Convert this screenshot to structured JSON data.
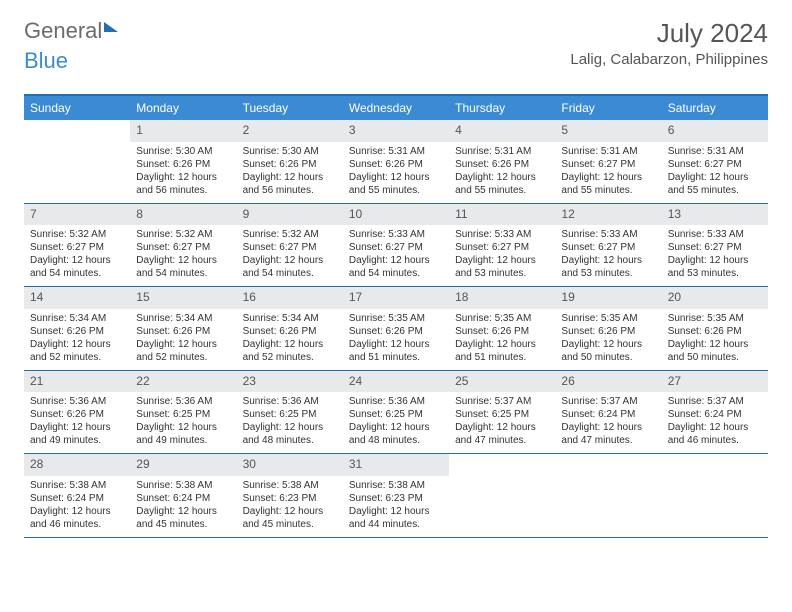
{
  "logo": {
    "part1": "General",
    "part2": "Blue"
  },
  "title": "July 2024",
  "location": "Lalig, Calabarzon, Philippines",
  "day_names": [
    "Sunday",
    "Monday",
    "Tuesday",
    "Wednesday",
    "Thursday",
    "Friday",
    "Saturday"
  ],
  "colors": {
    "accent": "#3b8bd4",
    "border": "#1f6fb5",
    "day_header_bg": "#e7e9ea",
    "text": "#333333",
    "muted": "#555555"
  },
  "weeks": [
    [
      {
        "day": "",
        "sunrise": "",
        "sunset": "",
        "daylight": ""
      },
      {
        "day": "1",
        "sunrise": "Sunrise: 5:30 AM",
        "sunset": "Sunset: 6:26 PM",
        "daylight": "Daylight: 12 hours and 56 minutes."
      },
      {
        "day": "2",
        "sunrise": "Sunrise: 5:30 AM",
        "sunset": "Sunset: 6:26 PM",
        "daylight": "Daylight: 12 hours and 56 minutes."
      },
      {
        "day": "3",
        "sunrise": "Sunrise: 5:31 AM",
        "sunset": "Sunset: 6:26 PM",
        "daylight": "Daylight: 12 hours and 55 minutes."
      },
      {
        "day": "4",
        "sunrise": "Sunrise: 5:31 AM",
        "sunset": "Sunset: 6:26 PM",
        "daylight": "Daylight: 12 hours and 55 minutes."
      },
      {
        "day": "5",
        "sunrise": "Sunrise: 5:31 AM",
        "sunset": "Sunset: 6:27 PM",
        "daylight": "Daylight: 12 hours and 55 minutes."
      },
      {
        "day": "6",
        "sunrise": "Sunrise: 5:31 AM",
        "sunset": "Sunset: 6:27 PM",
        "daylight": "Daylight: 12 hours and 55 minutes."
      }
    ],
    [
      {
        "day": "7",
        "sunrise": "Sunrise: 5:32 AM",
        "sunset": "Sunset: 6:27 PM",
        "daylight": "Daylight: 12 hours and 54 minutes."
      },
      {
        "day": "8",
        "sunrise": "Sunrise: 5:32 AM",
        "sunset": "Sunset: 6:27 PM",
        "daylight": "Daylight: 12 hours and 54 minutes."
      },
      {
        "day": "9",
        "sunrise": "Sunrise: 5:32 AM",
        "sunset": "Sunset: 6:27 PM",
        "daylight": "Daylight: 12 hours and 54 minutes."
      },
      {
        "day": "10",
        "sunrise": "Sunrise: 5:33 AM",
        "sunset": "Sunset: 6:27 PM",
        "daylight": "Daylight: 12 hours and 54 minutes."
      },
      {
        "day": "11",
        "sunrise": "Sunrise: 5:33 AM",
        "sunset": "Sunset: 6:27 PM",
        "daylight": "Daylight: 12 hours and 53 minutes."
      },
      {
        "day": "12",
        "sunrise": "Sunrise: 5:33 AM",
        "sunset": "Sunset: 6:27 PM",
        "daylight": "Daylight: 12 hours and 53 minutes."
      },
      {
        "day": "13",
        "sunrise": "Sunrise: 5:33 AM",
        "sunset": "Sunset: 6:27 PM",
        "daylight": "Daylight: 12 hours and 53 minutes."
      }
    ],
    [
      {
        "day": "14",
        "sunrise": "Sunrise: 5:34 AM",
        "sunset": "Sunset: 6:26 PM",
        "daylight": "Daylight: 12 hours and 52 minutes."
      },
      {
        "day": "15",
        "sunrise": "Sunrise: 5:34 AM",
        "sunset": "Sunset: 6:26 PM",
        "daylight": "Daylight: 12 hours and 52 minutes."
      },
      {
        "day": "16",
        "sunrise": "Sunrise: 5:34 AM",
        "sunset": "Sunset: 6:26 PM",
        "daylight": "Daylight: 12 hours and 52 minutes."
      },
      {
        "day": "17",
        "sunrise": "Sunrise: 5:35 AM",
        "sunset": "Sunset: 6:26 PM",
        "daylight": "Daylight: 12 hours and 51 minutes."
      },
      {
        "day": "18",
        "sunrise": "Sunrise: 5:35 AM",
        "sunset": "Sunset: 6:26 PM",
        "daylight": "Daylight: 12 hours and 51 minutes."
      },
      {
        "day": "19",
        "sunrise": "Sunrise: 5:35 AM",
        "sunset": "Sunset: 6:26 PM",
        "daylight": "Daylight: 12 hours and 50 minutes."
      },
      {
        "day": "20",
        "sunrise": "Sunrise: 5:35 AM",
        "sunset": "Sunset: 6:26 PM",
        "daylight": "Daylight: 12 hours and 50 minutes."
      }
    ],
    [
      {
        "day": "21",
        "sunrise": "Sunrise: 5:36 AM",
        "sunset": "Sunset: 6:26 PM",
        "daylight": "Daylight: 12 hours and 49 minutes."
      },
      {
        "day": "22",
        "sunrise": "Sunrise: 5:36 AM",
        "sunset": "Sunset: 6:25 PM",
        "daylight": "Daylight: 12 hours and 49 minutes."
      },
      {
        "day": "23",
        "sunrise": "Sunrise: 5:36 AM",
        "sunset": "Sunset: 6:25 PM",
        "daylight": "Daylight: 12 hours and 48 minutes."
      },
      {
        "day": "24",
        "sunrise": "Sunrise: 5:36 AM",
        "sunset": "Sunset: 6:25 PM",
        "daylight": "Daylight: 12 hours and 48 minutes."
      },
      {
        "day": "25",
        "sunrise": "Sunrise: 5:37 AM",
        "sunset": "Sunset: 6:25 PM",
        "daylight": "Daylight: 12 hours and 47 minutes."
      },
      {
        "day": "26",
        "sunrise": "Sunrise: 5:37 AM",
        "sunset": "Sunset: 6:24 PM",
        "daylight": "Daylight: 12 hours and 47 minutes."
      },
      {
        "day": "27",
        "sunrise": "Sunrise: 5:37 AM",
        "sunset": "Sunset: 6:24 PM",
        "daylight": "Daylight: 12 hours and 46 minutes."
      }
    ],
    [
      {
        "day": "28",
        "sunrise": "Sunrise: 5:38 AM",
        "sunset": "Sunset: 6:24 PM",
        "daylight": "Daylight: 12 hours and 46 minutes."
      },
      {
        "day": "29",
        "sunrise": "Sunrise: 5:38 AM",
        "sunset": "Sunset: 6:24 PM",
        "daylight": "Daylight: 12 hours and 45 minutes."
      },
      {
        "day": "30",
        "sunrise": "Sunrise: 5:38 AM",
        "sunset": "Sunset: 6:23 PM",
        "daylight": "Daylight: 12 hours and 45 minutes."
      },
      {
        "day": "31",
        "sunrise": "Sunrise: 5:38 AM",
        "sunset": "Sunset: 6:23 PM",
        "daylight": "Daylight: 12 hours and 44 minutes."
      },
      {
        "day": "",
        "sunrise": "",
        "sunset": "",
        "daylight": ""
      },
      {
        "day": "",
        "sunrise": "",
        "sunset": "",
        "daylight": ""
      },
      {
        "day": "",
        "sunrise": "",
        "sunset": "",
        "daylight": ""
      }
    ]
  ]
}
